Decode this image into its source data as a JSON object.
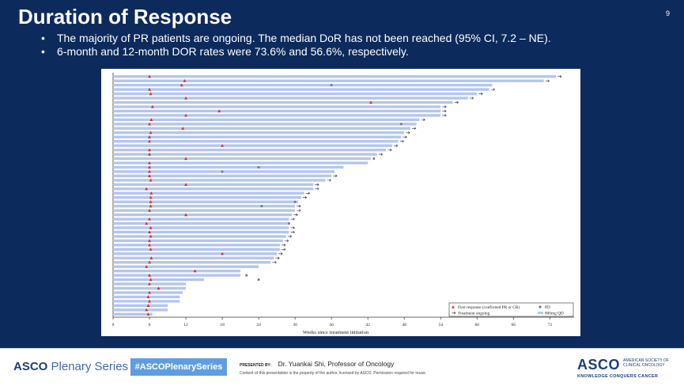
{
  "slide": {
    "title": "Duration of Response",
    "page_number": "9",
    "bullets": [
      "The majority of PR patients are ongoing.  The median DoR has not been reached (95% CI, 7.2 – NE).",
      "6-month and 12-month DOR rates were 73.6% and 56.6%, respectively."
    ]
  },
  "chart_data": {
    "type": "bar",
    "orientation": "horizontal",
    "title": "",
    "xlabel": "Weeks since treatment initiation",
    "ylabel": "",
    "xlim": [
      0,
      76
    ],
    "xticks": [
      0,
      6,
      12,
      18,
      24,
      30,
      36,
      42,
      48,
      54,
      60,
      66,
      72
    ],
    "bars": [
      {
        "end": 73.0,
        "response": 6.0,
        "pd": null,
        "ongoing": true
      },
      {
        "end": 71.0,
        "response": 11.8,
        "pd": null,
        "ongoing": true
      },
      {
        "end": 62.5,
        "response": 11.3,
        "pd": 36.0,
        "ongoing": false
      },
      {
        "end": 62.0,
        "response": 6.0,
        "pd": null,
        "ongoing": true
      },
      {
        "end": 60.0,
        "response": 6.2,
        "pd": null,
        "ongoing": true
      },
      {
        "end": 58.5,
        "response": 12.0,
        "pd": null,
        "ongoing": true
      },
      {
        "end": 56.0,
        "response": 42.5,
        "pd": null,
        "ongoing": true
      },
      {
        "end": 54.0,
        "response": 6.5,
        "pd": null,
        "ongoing": true
      },
      {
        "end": 54.0,
        "response": 17.5,
        "pd": null,
        "ongoing": true
      },
      {
        "end": 54.0,
        "response": 12.0,
        "pd": null,
        "ongoing": true
      },
      {
        "end": 50.5,
        "response": 6.3,
        "pd": null,
        "ongoing": true
      },
      {
        "end": 50.0,
        "response": 6.0,
        "pd": 47.5,
        "ongoing": false
      },
      {
        "end": 49.0,
        "response": 11.5,
        "pd": null,
        "ongoing": true
      },
      {
        "end": 48.0,
        "response": 6.2,
        "pd": null,
        "ongoing": true
      },
      {
        "end": 47.5,
        "response": 6.0,
        "pd": null,
        "ongoing": true
      },
      {
        "end": 47.0,
        "response": 6.0,
        "pd": null,
        "ongoing": true
      },
      {
        "end": 46.0,
        "response": 18.0,
        "pd": null,
        "ongoing": true
      },
      {
        "end": 45.0,
        "response": 6.0,
        "pd": null,
        "ongoing": true
      },
      {
        "end": 43.5,
        "response": 6.0,
        "pd": null,
        "ongoing": true
      },
      {
        "end": 42.5,
        "response": 12.0,
        "pd": 43.0,
        "ongoing": false
      },
      {
        "end": 42.0,
        "response": 6.0,
        "pd": null,
        "ongoing": false
      },
      {
        "end": 38.0,
        "response": 6.0,
        "pd": 24.0,
        "ongoing": false
      },
      {
        "end": 36.5,
        "response": 6.0,
        "pd": 18.0,
        "ongoing": false
      },
      {
        "end": 36.0,
        "response": 6.0,
        "pd": null,
        "ongoing": true
      },
      {
        "end": 35.0,
        "response": 6.2,
        "pd": null,
        "ongoing": true
      },
      {
        "end": 33.0,
        "response": 12.0,
        "pd": null,
        "ongoing": true
      },
      {
        "end": 33.0,
        "response": 5.5,
        "pd": null,
        "ongoing": true
      },
      {
        "end": 31.5,
        "response": 6.3,
        "pd": null,
        "ongoing": true
      },
      {
        "end": 31.0,
        "response": 6.2,
        "pd": null,
        "ongoing": true
      },
      {
        "end": 30.5,
        "response": 6.2,
        "pd": 30.0,
        "ongoing": false
      },
      {
        "end": 30.0,
        "response": 6.2,
        "pd": 24.5,
        "ongoing": true
      },
      {
        "end": 30.0,
        "response": 6.0,
        "pd": null,
        "ongoing": true
      },
      {
        "end": 29.5,
        "response": 12.0,
        "pd": null,
        "ongoing": true
      },
      {
        "end": 29.0,
        "response": 6.0,
        "pd": null,
        "ongoing": true
      },
      {
        "end": 29.0,
        "response": 5.5,
        "pd": 29.0,
        "ongoing": false
      },
      {
        "end": 29.0,
        "response": 6.2,
        "pd": null,
        "ongoing": true
      },
      {
        "end": 29.0,
        "response": 6.0,
        "pd": null,
        "ongoing": true
      },
      {
        "end": 28.5,
        "response": 6.2,
        "pd": null,
        "ongoing": true
      },
      {
        "end": 28.0,
        "response": 6.0,
        "pd": null,
        "ongoing": true
      },
      {
        "end": 27.5,
        "response": 6.0,
        "pd": null,
        "ongoing": true
      },
      {
        "end": 27.5,
        "response": 6.2,
        "pd": null,
        "ongoing": true
      },
      {
        "end": 27.0,
        "response": 18.0,
        "pd": null,
        "ongoing": true
      },
      {
        "end": 26.5,
        "response": 6.3,
        "pd": null,
        "ongoing": true
      },
      {
        "end": 26.0,
        "response": 6.0,
        "pd": null,
        "ongoing": true
      },
      {
        "end": 24.0,
        "response": 5.5,
        "pd": null,
        "ongoing": false
      },
      {
        "end": 21.0,
        "response": 13.5,
        "pd": null,
        "ongoing": false
      },
      {
        "end": 21.0,
        "response": 6.0,
        "pd": 22.0,
        "ongoing": false
      },
      {
        "end": 15.0,
        "response": 6.2,
        "pd": 24.0,
        "ongoing": false
      },
      {
        "end": 12.0,
        "response": 6.0,
        "pd": null,
        "ongoing": false
      },
      {
        "end": 12.0,
        "response": 7.5,
        "pd": null,
        "ongoing": false
      },
      {
        "end": 11.5,
        "response": 6.0,
        "pd": null,
        "ongoing": false
      },
      {
        "end": 11.0,
        "response": 5.8,
        "pd": null,
        "ongoing": false
      },
      {
        "end": 11.0,
        "response": 6.0,
        "pd": null,
        "ongoing": false
      },
      {
        "end": 9.0,
        "response": 5.8,
        "pd": null,
        "ongoing": false
      },
      {
        "end": 9.0,
        "response": 5.5,
        "pd": null,
        "ongoing": false
      },
      {
        "end": 6.5,
        "response": 5.8,
        "pd": null,
        "ongoing": false
      }
    ],
    "legend": {
      "placement": "bottom-right",
      "items": [
        {
          "label": "First response (confirmed PR or CR)",
          "symbol": "red-triangle"
        },
        {
          "label": "PD",
          "symbol": "gray-circle"
        },
        {
          "label": "Treatment ongoing",
          "symbol": "arrow"
        },
        {
          "label": "800mg QD",
          "symbol": "blue-bar"
        }
      ]
    },
    "colors": {
      "bar": "#b3c6ef",
      "response": "#e0302a",
      "pd": "#777777"
    }
  },
  "footer": {
    "brand_bold": "ASCO",
    "brand_light": "Plenary Series",
    "hashtag": "#ASCOPlenarySeries",
    "presented_label": "PRESENTED BY:",
    "presenter": "Dr. Yuankai Shi, Professor of Oncology",
    "copyright": "Content of this presentation is the property of the author, licensed by ASCO. Permission required for reuse.",
    "logo_text": "ASCO",
    "org_name": "AMERICAN SOCIETY OF CLINICAL ONCOLOGY",
    "tagline": "KNOWLEDGE CONQUERS CANCER"
  }
}
